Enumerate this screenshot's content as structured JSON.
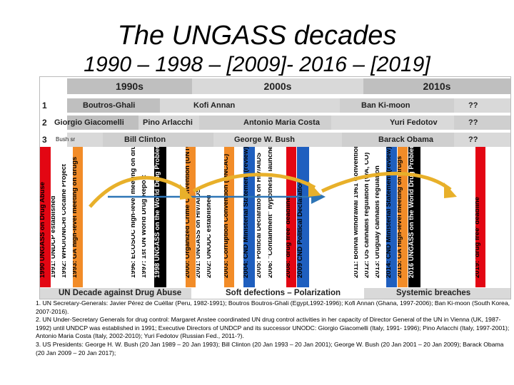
{
  "title": "The UNGASS decades",
  "subtitle": "1990 – 1998 – [2009]- 2016 – [2019]",
  "decades": [
    "1990s",
    "2000s",
    "2010s"
  ],
  "rows": [
    {
      "num": "1",
      "labels": [
        "Boutros-Ghali",
        "Kofi Annan",
        "Ban Ki-moon",
        "??"
      ]
    },
    {
      "num": "2",
      "labels": [
        "Giorgio Giacomelli",
        "Pino Arlacchi",
        "Antonio Maria Costa",
        "Yuri Fedotov",
        "??"
      ]
    },
    {
      "num": "3",
      "labels": [
        "Bush sr",
        "Bill Clinton",
        "George W. Bush",
        "Barack Obama",
        "??"
      ]
    }
  ],
  "events": [
    "1990 UNGASS on Drug Abuse",
    "1991: UNDCP established",
    "1992: WHO/UNICRI Cocaine Project",
    "1993: GA high-level meeting on drugs",
    "1996: ECOSOC high-level meeting on drugs",
    "1997: 1st UN World Drug Report",
    "1998 UNGASS on the World Drug Problem",
    "2000: Organized Crime Convention (UNTOC)",
    "2001: UNGASS on HIV/AIDS",
    "2002: UNODC established",
    "2003: Corruption Convention (UNCAC)",
    "2004: CND Ministerial Statement (review)",
    "2005: Political Declaration on HIV/AIDS",
    "2006: \"Containment\" hypothesis launched",
    "2008: 'drug free' deadline",
    "2009 CND Political Declaration",
    "2011: Bolivia withdrawal 1961 Convention",
    "2012: US cannabis regulation (WA, CO)",
    "2013: Uruguay cannabis regulation",
    "2014: CND Ministerial Statement (review)",
    "2015: GA High-level meeting on drugs",
    "2016 UNGASS on the World Drug Problem",
    "2019: 'drug free' deadline"
  ],
  "bottom": [
    "UN Decade against Drug Abuse",
    "Soft defections – Polarization",
    "Systemic breaches"
  ],
  "colors": {
    "red": "#e30613",
    "black": "#000000",
    "blue": "#1f5fbf",
    "orange": "#f28c28",
    "grey_dark": "#bfbfbf",
    "grey_light": "#d9d9d9",
    "grey_mid": "#cfcfcf",
    "arrow_gold": "#e8b02a",
    "arrow_blue": "#2e75b6"
  },
  "notes": [
    "1. UN Secretary-Generals: Javier Pérez de Cuéllar (Peru, 1982-1991); Boutros Boutros-Ghali (Egypt,1992-1996); Kofi Annan (Ghana, 1997-2006); Ban Ki-moon (South Korea, 2007-2016).",
    "2. UN Under-Secretary Generals for drug control: Margaret Anstee coordinated UN drug control activities in her capacity of Director General of the UN in Vienna (UK, 1987-1992) until UNDCP was established in 1991; Executive Directors of UNDCP and its successor UNODC: Giorgio Giacomelli (Italy, 1991- 1996); Pino Arlacchi (Italy, 1997-2001); Antonio Maria Costa (Italy, 2002-2010); Yuri Fedotov (Russian Fed., 2011-?).",
    "3. US Presidents: George H. W. Bush (20 Jan 1989 – 20 Jan 1993); Bill Clinton (20 Jan 1993 – 20 Jan 2001); George W. Bush (20 Jan 2001 – 20 Jan 2009); Barack Obama (20 Jan 2009 – 20 Jan 2017);"
  ]
}
